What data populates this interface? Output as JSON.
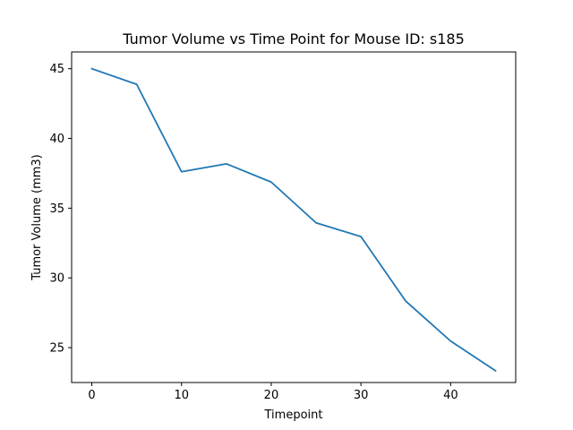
{
  "chart_data": {
    "type": "line",
    "title": "Tumor Volume vs Time Point for Mouse ID: s185",
    "xlabel": "Timepoint",
    "ylabel": "Tumor Volume (mm3)",
    "xlim": [
      -2.25,
      47.25
    ],
    "ylim": [
      22.5,
      46.2
    ],
    "xticks": [
      0,
      10,
      20,
      30,
      40
    ],
    "yticks": [
      25,
      30,
      35,
      40,
      45
    ],
    "grid": false,
    "series": [
      {
        "color": "#1f77b4",
        "x": [
          0,
          5,
          10,
          15,
          20,
          25,
          30,
          35,
          40,
          45
        ],
        "y": [
          45.0,
          43.88,
          37.61,
          38.18,
          36.87,
          33.95,
          32.96,
          28.33,
          25.47,
          23.34
        ]
      }
    ]
  }
}
